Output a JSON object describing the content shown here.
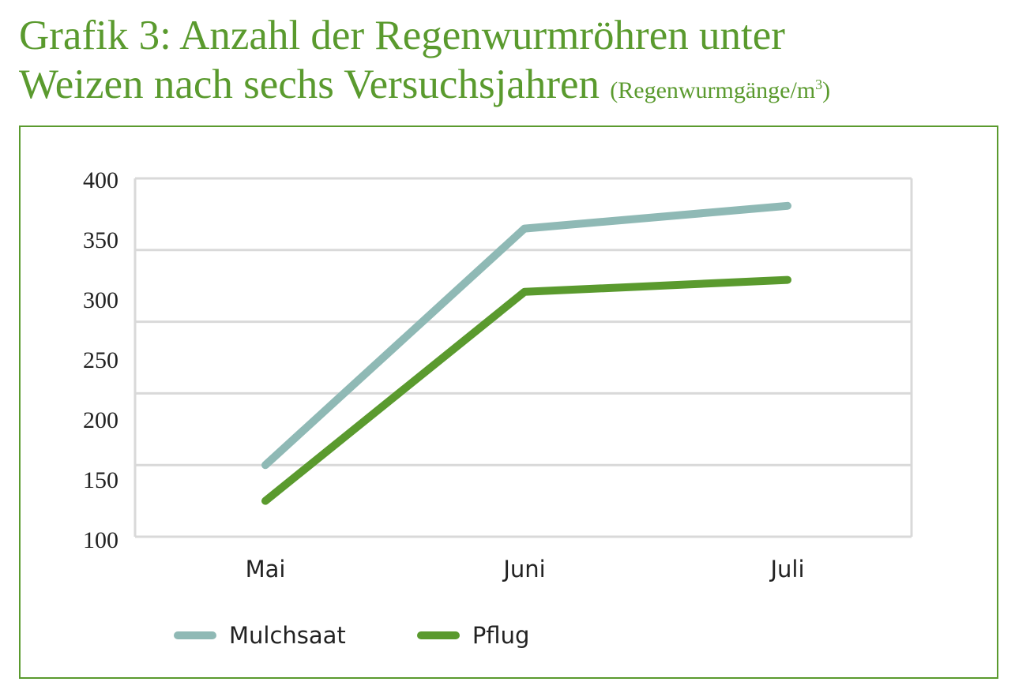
{
  "header": {
    "title_line1": "Grafik 3: Anzahl der Regenwurmröhren unter",
    "title_line2": "Weizen nach sechs Versuchsjahren",
    "unit_prefix": "(Regenwurmgänge/m",
    "unit_exp": "3",
    "unit_suffix": ")"
  },
  "chart_data": {
    "type": "line",
    "title": "Grafik 3: Anzahl der Regenwurmröhren unter Weizen nach sechs Versuchsjahren",
    "ylabel": "Regenwurmgänge/m³",
    "xlabel": "",
    "categories": [
      "Mai",
      "Juni",
      "Juli"
    ],
    "ylim": [
      100,
      400
    ],
    "yticks": [
      "100",
      "150",
      "200",
      "250",
      "300",
      "350",
      "400"
    ],
    "grid": true,
    "legend_position": "bottom",
    "series": [
      {
        "name": "Mulchsaat",
        "color": "#8fb9b5",
        "values": [
          160,
          358,
          377
        ]
      },
      {
        "name": "Pflug",
        "color": "#5a9a2e",
        "values": [
          130,
          305,
          315
        ]
      }
    ]
  }
}
